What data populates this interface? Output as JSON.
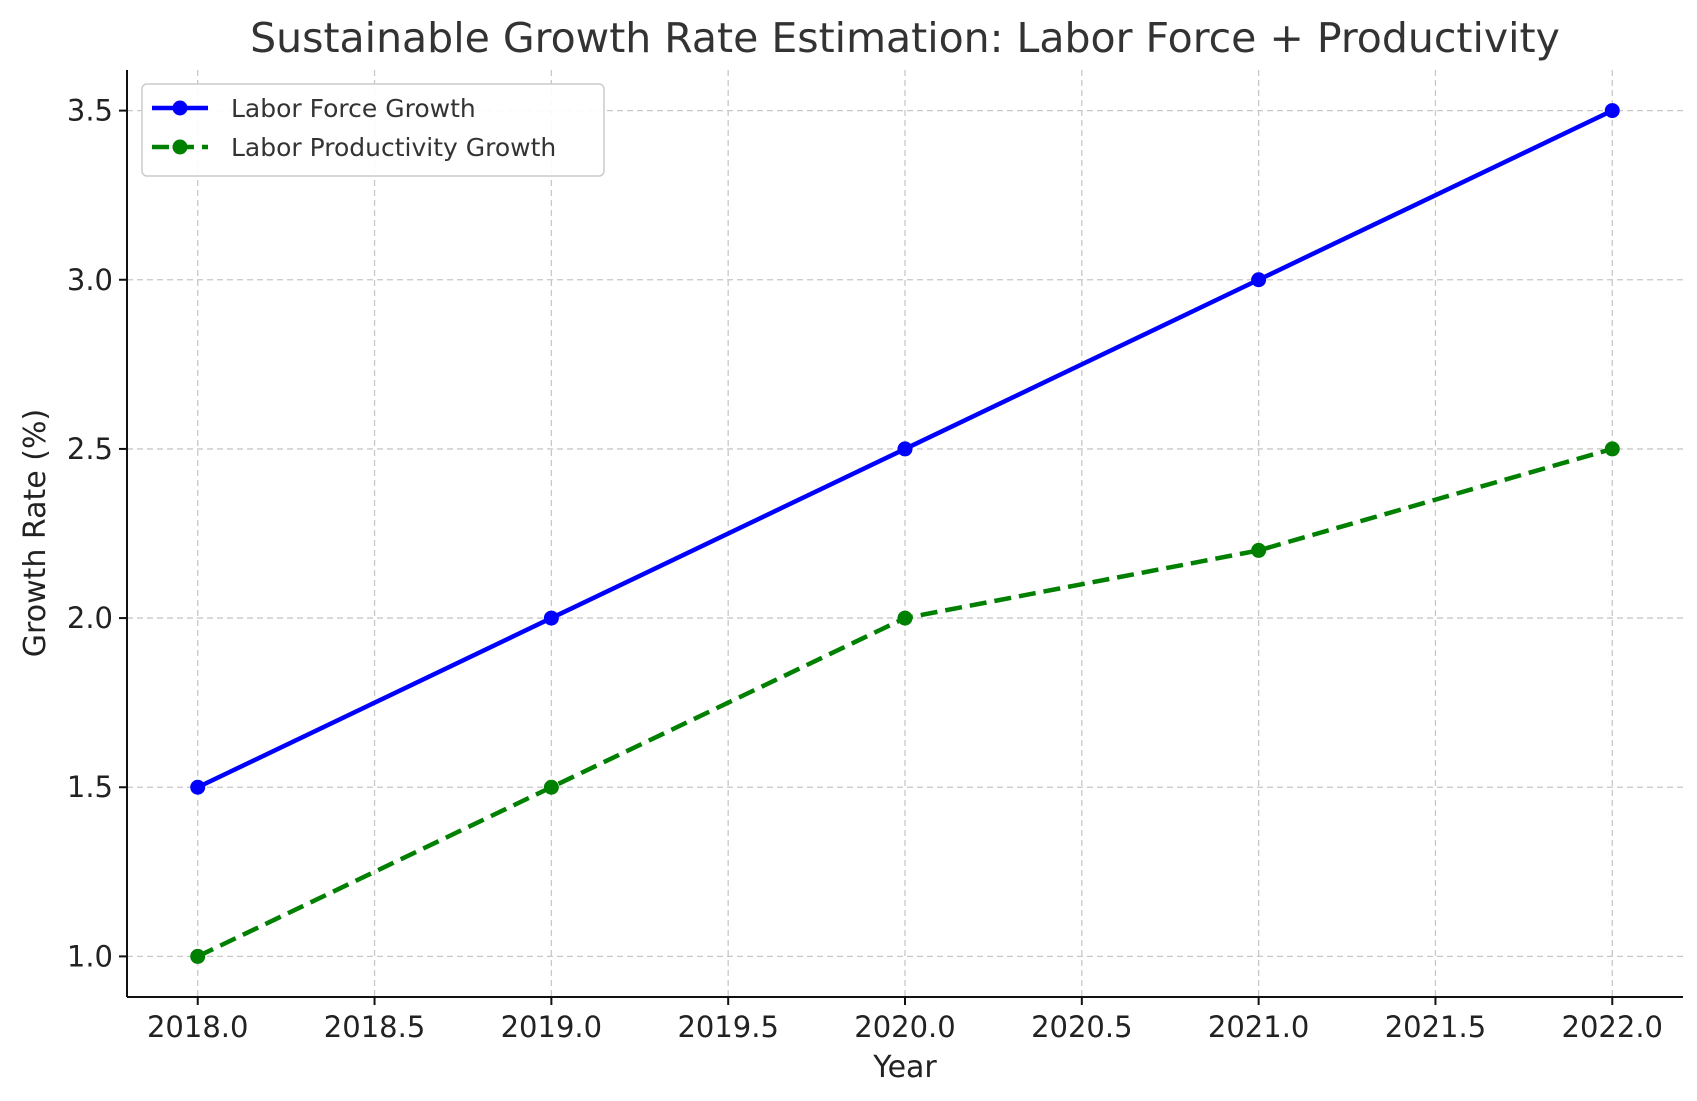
{
  "chart_data": {
    "type": "line",
    "title": "Sustainable Growth Rate Estimation: Labor Force + Productivity",
    "xlabel": "Year",
    "ylabel": "Growth Rate (%)",
    "xlim": [
      2017.8,
      2022.2
    ],
    "ylim": [
      0.88,
      3.62
    ],
    "xticks": [
      2018.0,
      2018.5,
      2019.0,
      2019.5,
      2020.0,
      2020.5,
      2021.0,
      2021.5,
      2022.0
    ],
    "xtick_labels": [
      "2018.0",
      "2018.5",
      "2019.0",
      "2019.5",
      "2020.0",
      "2020.5",
      "2021.0",
      "2021.5",
      "2022.0"
    ],
    "yticks": [
      1.0,
      1.5,
      2.0,
      2.5,
      3.0,
      3.5
    ],
    "ytick_labels": [
      "1.0",
      "1.5",
      "2.0",
      "2.5",
      "3.0",
      "3.5"
    ],
    "grid": true,
    "legend_position": "top-left",
    "x": [
      2018,
      2019,
      2020,
      2021,
      2022
    ],
    "series": [
      {
        "name": "Labor Force Growth",
        "values": [
          1.5,
          2.0,
          2.5,
          3.0,
          3.5
        ],
        "color": "#0000ff",
        "line_style": "solid",
        "marker": "circle"
      },
      {
        "name": "Labor Productivity Growth",
        "values": [
          1.0,
          1.5,
          2.0,
          2.2,
          2.5
        ],
        "color": "#008000",
        "line_style": "dashed",
        "marker": "circle"
      }
    ]
  }
}
